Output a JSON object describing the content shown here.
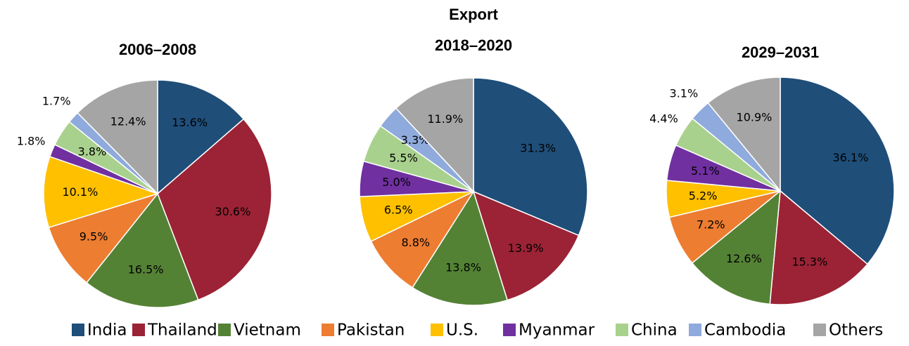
{
  "title": "Export",
  "legend": {
    "categories": [
      "India",
      "Thailand",
      "Vietnam",
      "Pakistan",
      "U.S.",
      "Myanmar",
      "China",
      "Cambodia",
      "Others"
    ],
    "colors": [
      "#1f4e79",
      "#9b2335",
      "#548235",
      "#ed7d31",
      "#ffc000",
      "#7030a0",
      "#a9d18e",
      "#8faadc",
      "#a5a5a5"
    ]
  },
  "chart_data": [
    {
      "type": "pie",
      "title": "2006–2008",
      "values": [
        13.6,
        30.6,
        16.5,
        9.5,
        10.1,
        1.8,
        3.8,
        1.7,
        12.4
      ],
      "value_labels": [
        "13.6%",
        "30.6%",
        "16.5%",
        "9.5%",
        "10.1%",
        "1.8%",
        "3.8%",
        "1.7%",
        "12.4%"
      ]
    },
    {
      "type": "pie",
      "title": "2018–2020",
      "values": [
        31.3,
        13.9,
        13.8,
        8.8,
        6.5,
        5.0,
        5.5,
        3.3,
        11.9
      ],
      "value_labels": [
        "31.3%",
        "13.9%",
        "13.8%",
        "8.8%",
        "6.5%",
        "5.0%",
        "5.5%",
        "3.3%",
        "11.9%"
      ]
    },
    {
      "type": "pie",
      "title": "2029–2031",
      "values": [
        36.1,
        15.3,
        12.6,
        7.2,
        5.2,
        5.1,
        4.4,
        3.1,
        10.9
      ],
      "value_labels": [
        "36.1%",
        "15.3%",
        "12.6%",
        "7.2%",
        "5.2%",
        "5.1%",
        "4.4%",
        "3.1%",
        "10.9%"
      ]
    }
  ]
}
